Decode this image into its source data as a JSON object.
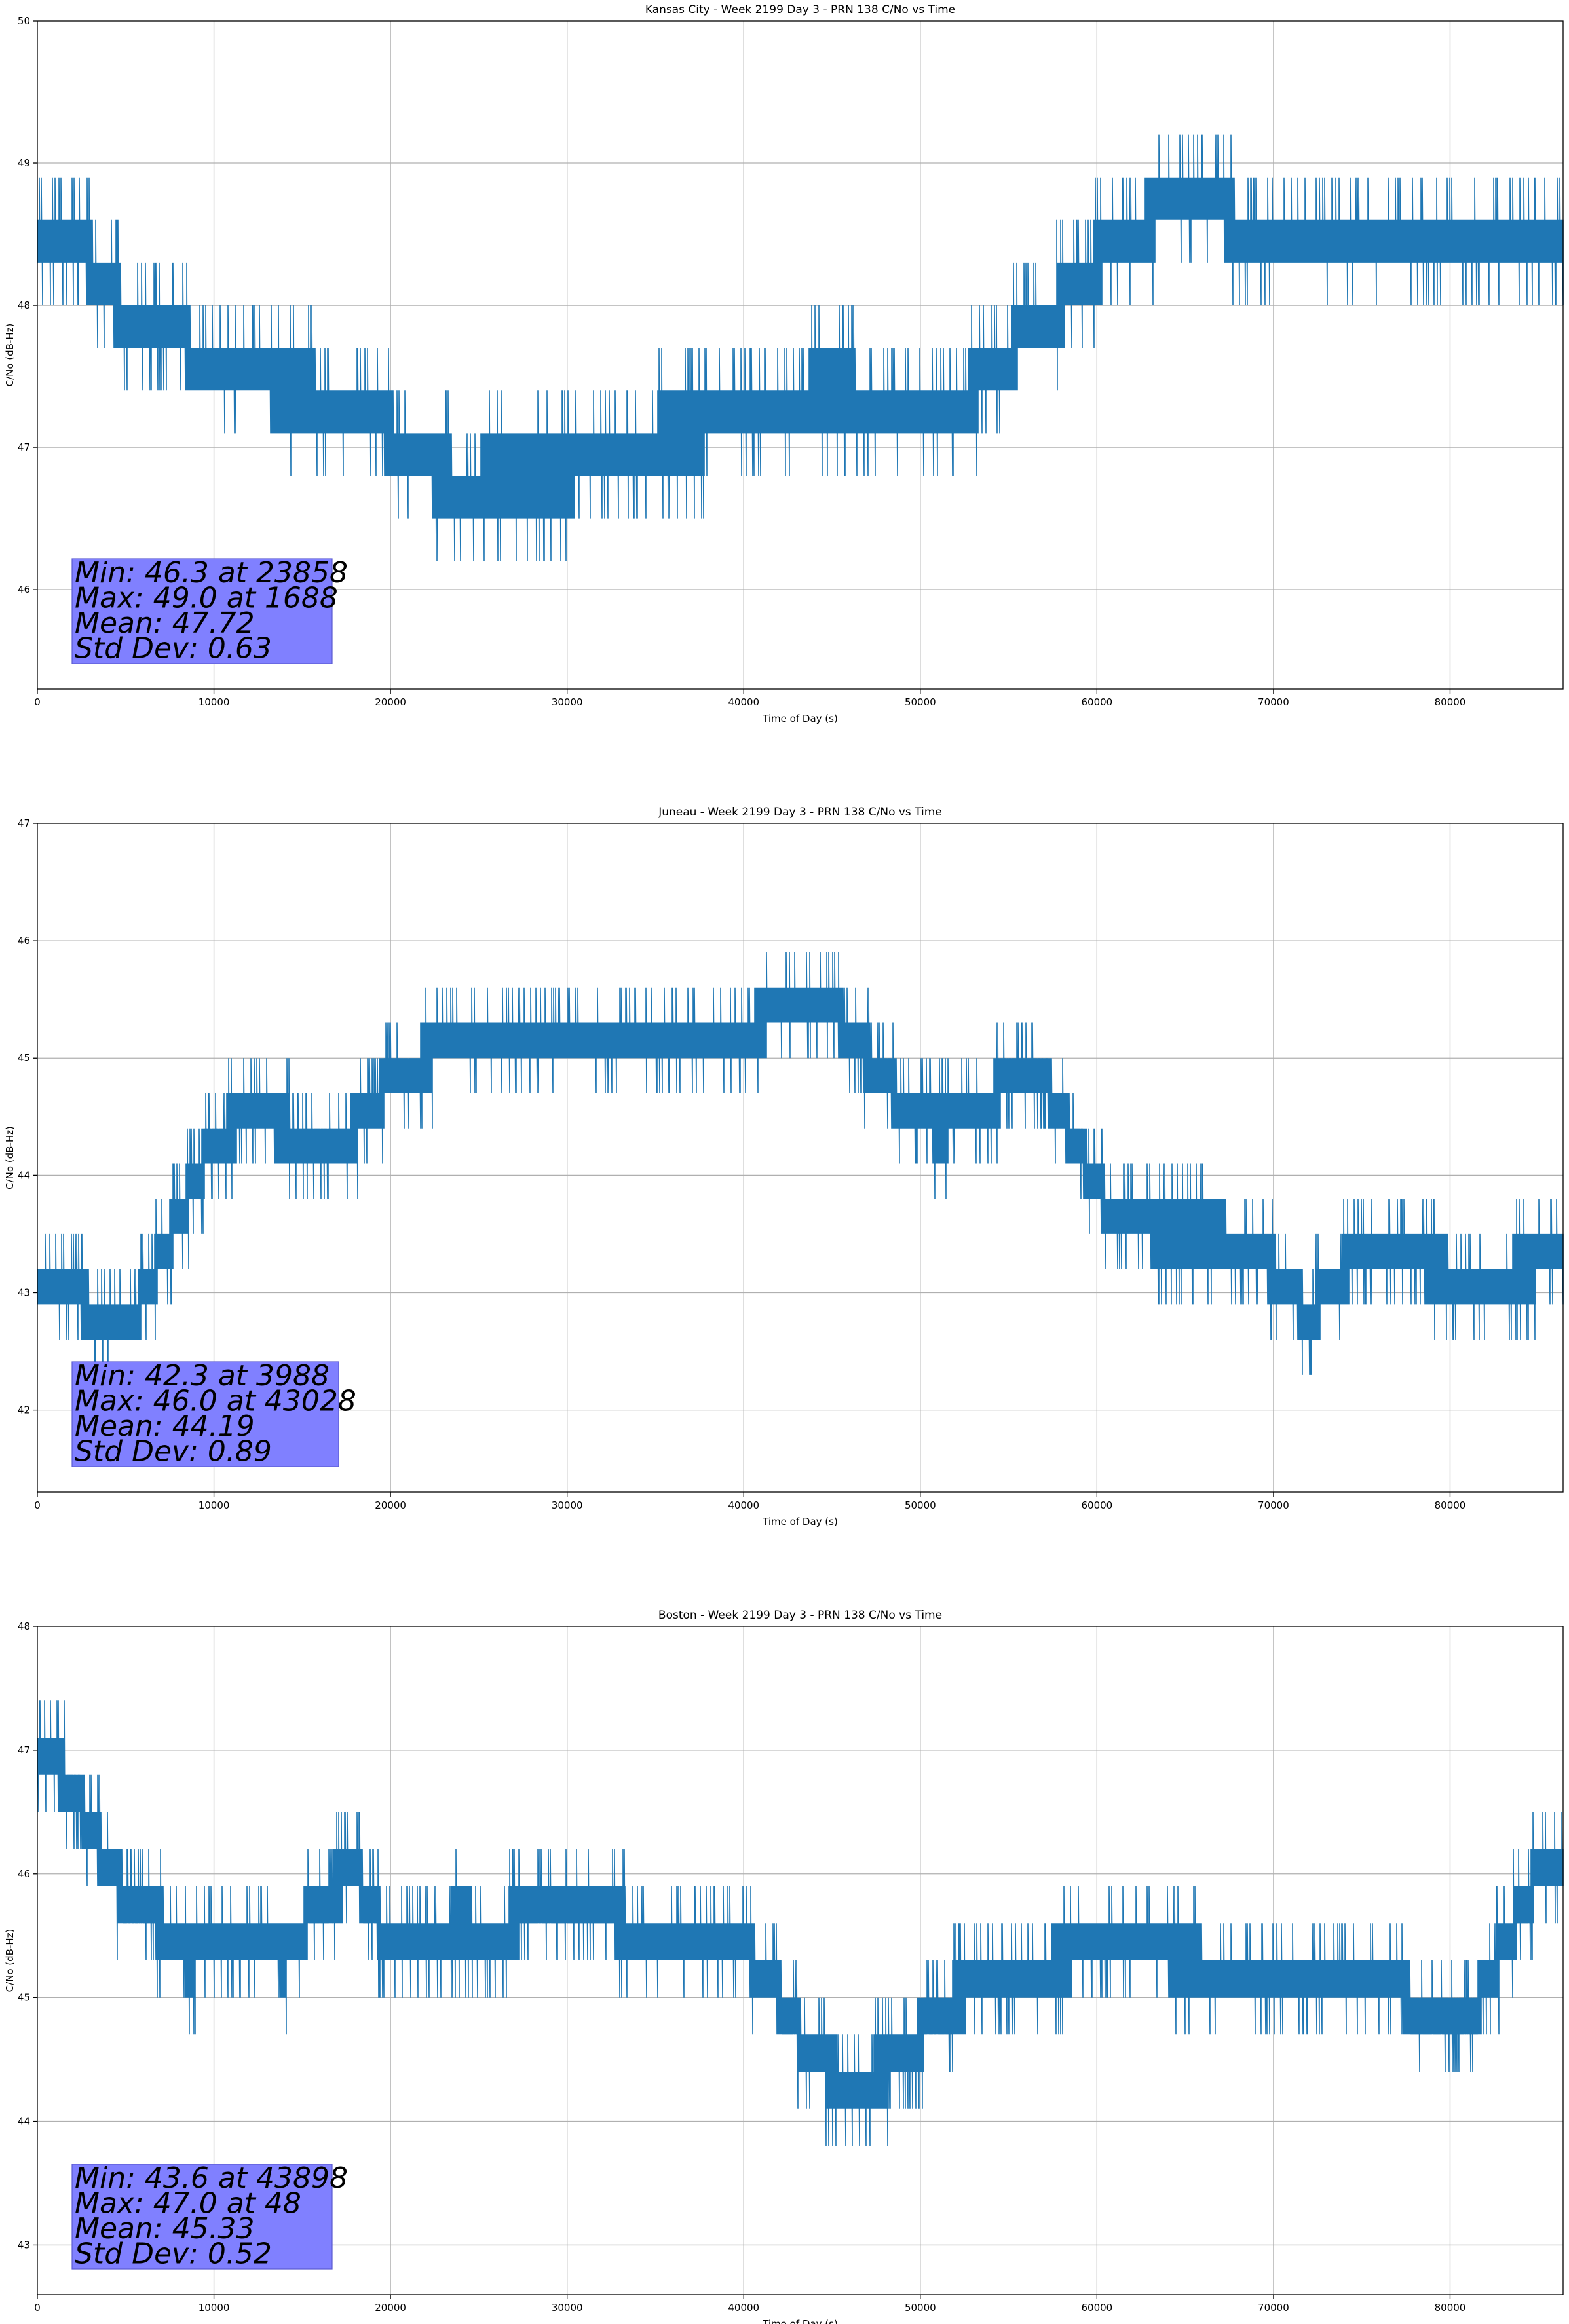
{
  "colors": {
    "series": "#1f77b4",
    "grid": "#b0b0b0",
    "stats_box": "#8080ff"
  },
  "chart_data": [
    {
      "type": "line",
      "title": "Kansas City - Week 2199 Day 3 - PRN 138 C/No vs Time",
      "xlabel": "Time of Day (s)",
      "ylabel": "C/No (dB-Hz)",
      "xlim": [
        0,
        86400
      ],
      "ylim": [
        45.3,
        50
      ],
      "xticks": [
        0,
        10000,
        20000,
        30000,
        40000,
        50000,
        60000,
        70000,
        80000
      ],
      "yticks": [
        46,
        47,
        48,
        49,
        50
      ],
      "grid": true,
      "quantum": 0.3,
      "noise_seed": 11,
      "x": [
        0,
        1688,
        3000,
        4500,
        6000,
        8000,
        9500,
        12000,
        15000,
        17500,
        20000,
        21000,
        23858,
        27000,
        30000,
        33000,
        36000,
        39000,
        42000,
        44000,
        46000,
        48000,
        50000,
        52000,
        54000,
        56000,
        58000,
        60000,
        62000,
        64000,
        66000,
        68000,
        70000,
        74000,
        78000,
        82000,
        86400
      ],
      "y": [
        48.45,
        48.5,
        48.3,
        48.0,
        47.8,
        47.8,
        47.5,
        47.45,
        47.4,
        47.3,
        47.1,
        46.9,
        46.75,
        46.8,
        46.8,
        47.0,
        47.1,
        47.15,
        47.2,
        47.4,
        47.4,
        47.2,
        47.2,
        47.3,
        47.5,
        47.8,
        48.0,
        48.3,
        48.5,
        48.7,
        48.75,
        48.55,
        48.5,
        48.4,
        48.4,
        48.45,
        48.45
      ],
      "stats": {
        "min": "Min: 46.3 at 23858",
        "max": "Max: 49.0 at 1688",
        "mean": "Mean: 47.72",
        "std": "Std Dev: 0.63"
      }
    },
    {
      "type": "line",
      "title": "Juneau - Week 2199 Day 3 - PRN 138 C/No vs Time",
      "xlabel": "Time of Day (s)",
      "ylabel": "C/No (dB-Hz)",
      "xlim": [
        0,
        86400
      ],
      "ylim": [
        41.3,
        47
      ],
      "xticks": [
        0,
        10000,
        20000,
        30000,
        40000,
        50000,
        60000,
        70000,
        80000
      ],
      "yticks": [
        42,
        43,
        44,
        45,
        46,
        47
      ],
      "grid": true,
      "quantum": 0.3,
      "noise_seed": 23,
      "x": [
        0,
        2000,
        3988,
        5500,
        7000,
        8500,
        10000,
        12000,
        14000,
        16000,
        18000,
        20000,
        22000,
        24000,
        27000,
        30000,
        33000,
        36000,
        39000,
        41000,
        43028,
        45000,
        47000,
        49000,
        51000,
        53000,
        55000,
        57000,
        59000,
        61000,
        64000,
        67000,
        70000,
        72000,
        74000,
        76000,
        79000,
        82000,
        86400
      ],
      "y": [
        43.1,
        43.0,
        42.7,
        42.8,
        43.3,
        43.8,
        44.3,
        44.5,
        44.4,
        44.2,
        44.4,
        44.8,
        45.0,
        45.15,
        45.15,
        45.15,
        45.15,
        45.15,
        45.15,
        45.3,
        45.5,
        45.4,
        45.0,
        44.6,
        44.4,
        44.5,
        44.8,
        44.8,
        44.2,
        43.6,
        43.5,
        43.5,
        43.2,
        42.8,
        43.2,
        43.4,
        43.2,
        43.1,
        43.3
      ],
      "stats": {
        "min": "Min: 42.3 at 3988",
        "max": "Max: 46.0 at 43028",
        "mean": "Mean: 44.19",
        "std": "Std Dev: 0.89"
      }
    },
    {
      "type": "line",
      "title": "Boston - Week 2199 Day 3 - PRN 138 C/No vs Time",
      "xlabel": "Time of Day (s)",
      "ylabel": "C/No (dB-Hz)",
      "xlim": [
        0,
        86400
      ],
      "ylim": [
        42.6,
        48
      ],
      "xticks": [
        0,
        10000,
        20000,
        30000,
        40000,
        50000,
        60000,
        70000,
        80000
      ],
      "yticks": [
        43,
        44,
        45,
        46,
        47,
        48
      ],
      "grid": true,
      "quantum": 0.3,
      "noise_seed": 37,
      "x": [
        0,
        48,
        2000,
        3500,
        5000,
        7000,
        8500,
        10000,
        12000,
        14000,
        16000,
        18000,
        20000,
        22000,
        24000,
        26000,
        28000,
        30000,
        32000,
        34000,
        37000,
        40000,
        42000,
        43898,
        46000,
        48000,
        50000,
        52000,
        54000,
        56000,
        58000,
        60000,
        62000,
        65000,
        68000,
        72000,
        76000,
        79000,
        81000,
        83000,
        85000,
        86400
      ],
      "y": [
        46.8,
        47.0,
        46.7,
        46.2,
        45.8,
        45.6,
        45.3,
        45.4,
        45.5,
        45.3,
        45.8,
        46.0,
        45.4,
        45.5,
        45.6,
        45.5,
        45.7,
        45.8,
        45.7,
        45.5,
        45.5,
        45.4,
        45.0,
        44.5,
        44.3,
        44.4,
        44.7,
        45.0,
        45.1,
        45.2,
        45.3,
        45.4,
        45.4,
        45.3,
        45.2,
        45.2,
        45.2,
        44.8,
        44.8,
        45.4,
        46.0,
        46.1
      ],
      "stats": {
        "min": "Min: 43.6 at 43898",
        "max": "Max: 47.0 at 48",
        "mean": "Mean: 45.33",
        "std": "Std Dev: 0.52"
      }
    }
  ]
}
